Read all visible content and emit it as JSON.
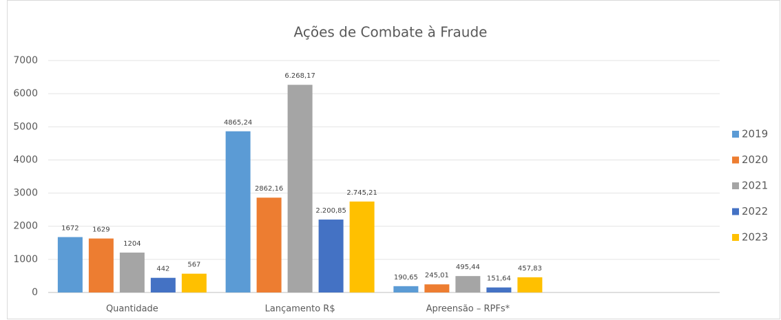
{
  "chart_data": {
    "type": "bar",
    "title": "Ações de Combate à Fraude",
    "categories": [
      "Quantidade",
      "Lançamento R$",
      "Apreensão – RPFs*",
      null
    ],
    "series": [
      {
        "name": "2019",
        "color": "#5b9bd5",
        "values": [
          1672,
          4865.24,
          190.65,
          null
        ],
        "value_labels": [
          "1672",
          "4865,24",
          "190,65",
          null
        ]
      },
      {
        "name": "2020",
        "color": "#ed7d31",
        "values": [
          1629,
          2862.16,
          245.01,
          null
        ],
        "value_labels": [
          "1629",
          "2862,16",
          "245,01",
          null
        ]
      },
      {
        "name": "2021",
        "color": "#a5a5a5",
        "values": [
          1204,
          6268.17,
          495.44,
          null
        ],
        "value_labels": [
          "1204",
          "6.268,17",
          "495,44",
          null
        ]
      },
      {
        "name": "2022",
        "color": "#4472c4",
        "values": [
          442,
          2200.85,
          151.64,
          null
        ],
        "value_labels": [
          "442",
          "2.200,85",
          "151,64",
          null
        ]
      },
      {
        "name": "2023",
        "color": "#ffc000",
        "values": [
          567,
          2745.21,
          457.83,
          null
        ],
        "value_labels": [
          "567",
          "2.745,21",
          "457,83",
          null
        ]
      }
    ],
    "ylim": [
      0,
      7000
    ],
    "yticks": [
      0,
      1000,
      2000,
      3000,
      4000,
      5000,
      6000,
      7000
    ],
    "grid": true,
    "legend": "right"
  }
}
